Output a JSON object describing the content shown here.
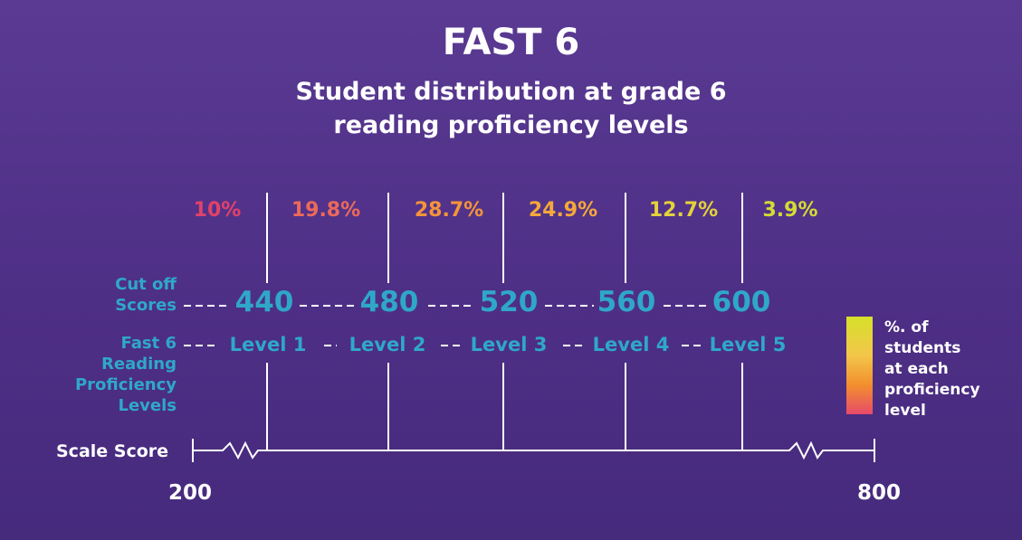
{
  "title": "FAST 6",
  "subtitle_line1": "Student distribution at grade 6",
  "subtitle_line2": "reading proficiency levels",
  "percentages": [
    {
      "label": "10%",
      "color": "#e0426a"
    },
    {
      "label": "19.8%",
      "color": "#ec6a5a"
    },
    {
      "label": "28.7%",
      "color": "#f4943a"
    },
    {
      "label": "24.9%",
      "color": "#f4a83a"
    },
    {
      "label": "12.7%",
      "color": "#e4d23a"
    },
    {
      "label": "3.9%",
      "color": "#d2dc34"
    }
  ],
  "cutoff_label_line1": "Cut off",
  "cutoff_label_line2": "Scores",
  "cutoff_scores": [
    "440",
    "480",
    "520",
    "560",
    "600"
  ],
  "levels_label_line1": "Fast 6",
  "levels_label_line2": "Reading",
  "levels_label_line3": "Proficiency",
  "levels_label_line4": "Levels",
  "levels": [
    "Level 1",
    "Level 2",
    "Level 3",
    "Level 4",
    "Level 5"
  ],
  "axis_label": "Scale Score",
  "scale_min": "200",
  "scale_max": "800",
  "legend_line1": "%. of",
  "legend_line2": "students",
  "legend_line3": "at each",
  "legend_line4": "proficiency",
  "legend_line5": "level",
  "label_color": "#2fa8c8"
}
